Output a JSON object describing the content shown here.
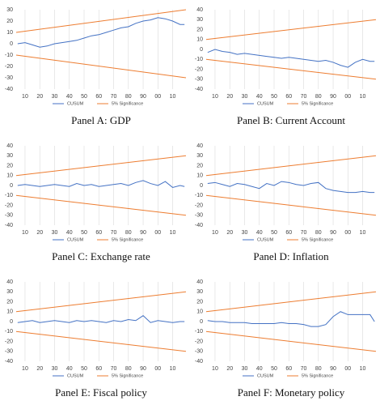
{
  "chart_data": [
    {
      "type": "line",
      "title": "Panel A: GDP",
      "x": [
        5,
        10,
        15,
        20,
        25,
        30,
        35,
        40,
        45,
        50,
        55,
        60,
        65,
        70,
        75,
        80,
        85,
        90,
        95,
        100,
        105,
        110,
        115,
        118
      ],
      "series": [
        {
          "name": "CUSUM",
          "color": "#4472c4",
          "values": [
            0,
            1,
            -1,
            -3,
            -2,
            0,
            1,
            2,
            3,
            5,
            7,
            8,
            10,
            12,
            14,
            15,
            18,
            20,
            21,
            23,
            22,
            20,
            17,
            17
          ]
        },
        {
          "name": "5% Significance",
          "color": "#ed7d31",
          "x": [
            4,
            119
          ],
          "values": [
            10,
            30
          ],
          "lower": [
            -10,
            -30
          ]
        }
      ],
      "xlim": [
        4,
        119
      ],
      "xticks": [
        10,
        20,
        30,
        40,
        50,
        60,
        70,
        80,
        90,
        {
          "value": 100,
          "label": "00"
        },
        {
          "value": 110,
          "label": "10"
        }
      ],
      "ylim": [
        -40,
        30
      ],
      "yticks": [
        -40,
        -30,
        -20,
        -10,
        0,
        10,
        20,
        30
      ],
      "grid": "x"
    },
    {
      "type": "line",
      "title": "Panel B: Current Account",
      "x": [
        5,
        10,
        15,
        20,
        25,
        30,
        35,
        40,
        45,
        50,
        55,
        60,
        65,
        70,
        75,
        80,
        85,
        90,
        95,
        100,
        105,
        110,
        115,
        118
      ],
      "series": [
        {
          "name": "CUSUM",
          "color": "#4472c4",
          "values": [
            -3,
            0,
            -2,
            -3,
            -5,
            -4,
            -5,
            -6,
            -7,
            -8,
            -9,
            -8,
            -9,
            -10,
            -11,
            -12,
            -11,
            -13,
            -16,
            -18,
            -13,
            -10,
            -12,
            -12
          ]
        },
        {
          "name": "5% Significance",
          "color": "#ed7d31",
          "x": [
            4,
            119
          ],
          "values": [
            10,
            30
          ],
          "lower": [
            -10,
            -30
          ]
        }
      ],
      "xlim": [
        4,
        119
      ],
      "xticks": [
        10,
        20,
        30,
        40,
        50,
        60,
        70,
        80,
        90,
        {
          "value": 100,
          "label": "00"
        },
        {
          "value": 110,
          "label": "10"
        }
      ],
      "ylim": [
        -40,
        40
      ],
      "yticks": [
        -40,
        -30,
        -20,
        -10,
        0,
        10,
        20,
        30,
        40
      ],
      "grid": "x"
    },
    {
      "type": "line",
      "title": "Panel C: Exchange rate",
      "x": [
        5,
        10,
        15,
        20,
        25,
        30,
        35,
        40,
        45,
        50,
        55,
        60,
        65,
        70,
        75,
        80,
        85,
        90,
        95,
        100,
        105,
        110,
        115,
        118
      ],
      "series": [
        {
          "name": "CUSUM",
          "color": "#4472c4",
          "values": [
            0,
            1,
            0,
            -1,
            0,
            1,
            0,
            -1,
            2,
            0,
            1,
            -1,
            0,
            1,
            2,
            0,
            3,
            5,
            2,
            0,
            4,
            -2,
            0,
            -1
          ]
        },
        {
          "name": "5% Significance",
          "color": "#ed7d31",
          "x": [
            4,
            119
          ],
          "values": [
            10,
            30
          ],
          "lower": [
            -10,
            -30
          ]
        }
      ],
      "xlim": [
        4,
        119
      ],
      "xticks": [
        10,
        20,
        30,
        40,
        50,
        60,
        70,
        80,
        90,
        {
          "value": 100,
          "label": "00"
        },
        {
          "value": 110,
          "label": "10"
        }
      ],
      "ylim": [
        -40,
        40
      ],
      "yticks": [
        -40,
        -30,
        -20,
        -10,
        0,
        10,
        20,
        30,
        40
      ],
      "grid": "x"
    },
    {
      "type": "line",
      "title": "Panel D: Inflation",
      "x": [
        5,
        10,
        15,
        20,
        25,
        30,
        35,
        40,
        45,
        50,
        55,
        60,
        65,
        70,
        75,
        80,
        85,
        90,
        95,
        100,
        105,
        110,
        115,
        118
      ],
      "series": [
        {
          "name": "CUSUM",
          "color": "#4472c4",
          "values": [
            2,
            3,
            1,
            -1,
            2,
            1,
            -1,
            -3,
            2,
            0,
            4,
            3,
            1,
            0,
            2,
            3,
            -3,
            -5,
            -6,
            -7,
            -7,
            -6,
            -7,
            -7
          ]
        },
        {
          "name": "5% Significance",
          "color": "#ed7d31",
          "x": [
            4,
            119
          ],
          "values": [
            10,
            30
          ],
          "lower": [
            -10,
            -30
          ]
        }
      ],
      "xlim": [
        4,
        119
      ],
      "xticks": [
        10,
        20,
        30,
        40,
        50,
        60,
        70,
        80,
        90,
        {
          "value": 100,
          "label": "00"
        },
        {
          "value": 110,
          "label": "10"
        }
      ],
      "ylim": [
        -40,
        40
      ],
      "yticks": [
        -40,
        -30,
        -20,
        -10,
        0,
        10,
        20,
        30,
        40
      ],
      "grid": "x"
    },
    {
      "type": "line",
      "title": "Panel E: Fiscal policy",
      "x": [
        5,
        10,
        15,
        20,
        25,
        30,
        35,
        40,
        45,
        50,
        55,
        60,
        65,
        70,
        75,
        80,
        85,
        90,
        95,
        100,
        105,
        110,
        115,
        118
      ],
      "series": [
        {
          "name": "CUSUM",
          "color": "#4472c4",
          "values": [
            -1,
            0,
            1,
            -1,
            0,
            1,
            0,
            -1,
            1,
            0,
            1,
            0,
            -1,
            1,
            0,
            2,
            1,
            6,
            -1,
            1,
            0,
            -1,
            0,
            0
          ]
        },
        {
          "name": "5% Significance",
          "color": "#ed7d31",
          "x": [
            4,
            119
          ],
          "values": [
            10,
            30
          ],
          "lower": [
            -10,
            -30
          ]
        }
      ],
      "xlim": [
        4,
        119
      ],
      "xticks": [
        10,
        20,
        30,
        40,
        50,
        60,
        70,
        80,
        90,
        {
          "value": 100,
          "label": "00"
        },
        {
          "value": 110,
          "label": "10"
        }
      ],
      "ylim": [
        -40,
        40
      ],
      "yticks": [
        -40,
        -30,
        -20,
        -10,
        0,
        10,
        20,
        30,
        40
      ],
      "grid": "x"
    },
    {
      "type": "line",
      "title": "Panel F: Monetary policy",
      "x": [
        5,
        10,
        15,
        20,
        25,
        30,
        35,
        40,
        45,
        50,
        55,
        60,
        65,
        70,
        75,
        80,
        85,
        90,
        95,
        100,
        105,
        110,
        115,
        118
      ],
      "series": [
        {
          "name": "CUSUM",
          "color": "#4472c4",
          "values": [
            1,
            0,
            0,
            -1,
            -1,
            -1,
            -2,
            -2,
            -2,
            -2,
            -1,
            -2,
            -2,
            -3,
            -5,
            -5,
            -3,
            5,
            10,
            7,
            7,
            7,
            7,
            0
          ]
        },
        {
          "name": "5% Significance",
          "color": "#ed7d31",
          "x": [
            4,
            119
          ],
          "values": [
            10,
            30
          ],
          "lower": [
            -10,
            -30
          ]
        }
      ],
      "xlim": [
        4,
        119
      ],
      "xticks": [
        10,
        20,
        30,
        40,
        50,
        60,
        70,
        80,
        90,
        {
          "value": 100,
          "label": "00"
        },
        {
          "value": 110,
          "label": "10"
        }
      ],
      "ylim": [
        -40,
        40
      ],
      "yticks": [
        -40,
        -30,
        -20,
        -10,
        0,
        10,
        20,
        30,
        40
      ],
      "grid": "x"
    }
  ]
}
